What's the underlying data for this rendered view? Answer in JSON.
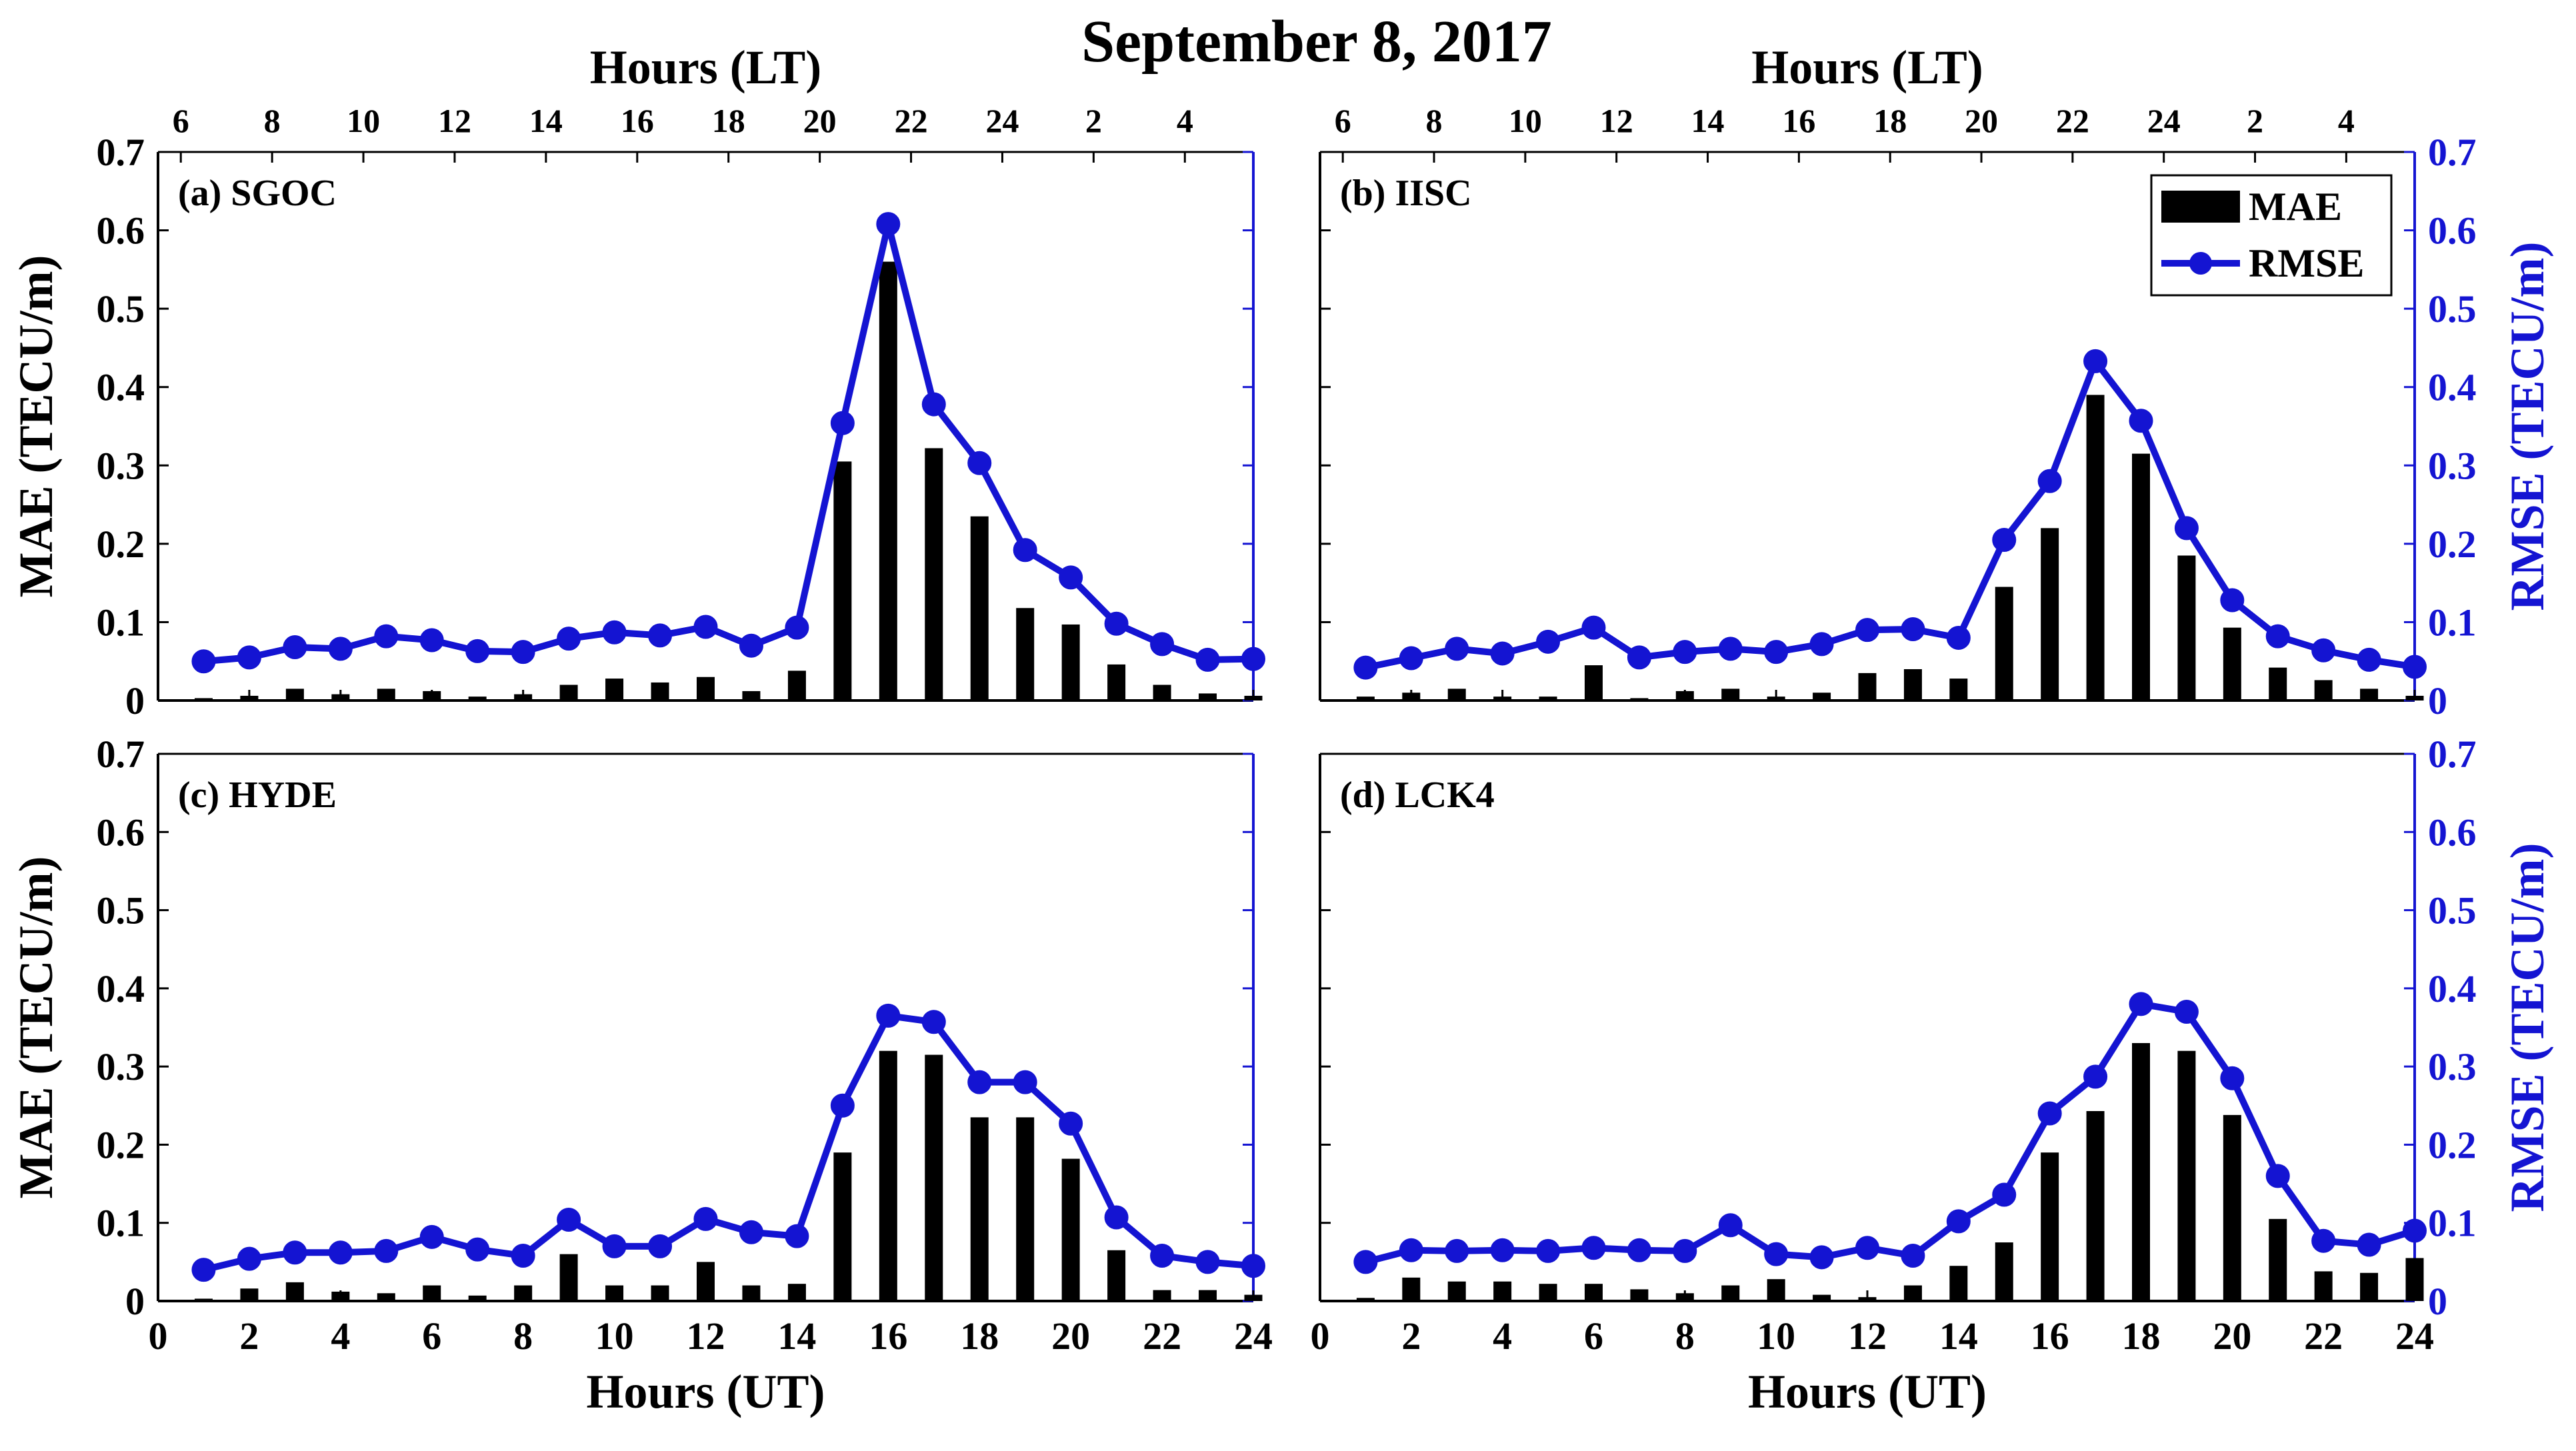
{
  "figure_title": "September 8, 2017",
  "colors": {
    "bar": "#000000",
    "line": "#1414d2",
    "axis": "#000000"
  },
  "legend": {
    "bar_label": "MAE",
    "line_label": "RMSE"
  },
  "chart_data": [
    {
      "type": "bar+line",
      "panel_label": "(a) SGOC",
      "title": "",
      "xlabel": "",
      "ylabel": "MAE (TECU/m)",
      "y2label": "",
      "top_xlabel": "Hours (LT)",
      "top_ticks": [
        "6",
        "8",
        "10",
        "12",
        "14",
        "16",
        "18",
        "20",
        "22",
        "24",
        "2",
        "4"
      ],
      "left_ticks": [
        "0",
        "0.1",
        "0.2",
        "0.3",
        "0.4",
        "0.5",
        "0.6",
        "0.7"
      ],
      "right_ticks": [],
      "bottom_ticks": [],
      "xlim": [
        0,
        24
      ],
      "ylim": [
        0,
        0.7
      ],
      "x": [
        1,
        2,
        3,
        4,
        5,
        6,
        7,
        8,
        9,
        10,
        11,
        12,
        13,
        14,
        15,
        16,
        17,
        18,
        19,
        20,
        21,
        22,
        23,
        24
      ],
      "series": [
        {
          "name": "MAE",
          "kind": "bar",
          "values": [
            0.003,
            0.006,
            0.015,
            0.008,
            0.015,
            0.012,
            0.005,
            0.008,
            0.02,
            0.028,
            0.023,
            0.03,
            0.012,
            0.038,
            0.305,
            0.56,
            0.322,
            0.235,
            0.118,
            0.097,
            0.046,
            0.02,
            0.009,
            0.006
          ]
        },
        {
          "name": "RMSE",
          "kind": "line",
          "values": [
            0.05,
            0.055,
            0.068,
            0.066,
            0.082,
            0.077,
            0.063,
            0.062,
            0.079,
            0.087,
            0.083,
            0.094,
            0.07,
            0.093,
            0.354,
            0.608,
            0.378,
            0.303,
            0.192,
            0.157,
            0.098,
            0.072,
            0.052,
            0.053
          ]
        }
      ]
    },
    {
      "type": "bar+line",
      "panel_label": "(b) IISC",
      "title": "",
      "xlabel": "",
      "ylabel": "",
      "y2label": "RMSE (TECU/m)",
      "top_xlabel": "Hours (LT)",
      "top_ticks": [
        "6",
        "8",
        "10",
        "12",
        "14",
        "16",
        "18",
        "20",
        "22",
        "24",
        "2",
        "4"
      ],
      "left_ticks": [],
      "right_ticks": [
        "0",
        "0.1",
        "0.2",
        "0.3",
        "0.4",
        "0.5",
        "0.6",
        "0.7"
      ],
      "bottom_ticks": [],
      "xlim": [
        0,
        24
      ],
      "ylim": [
        0,
        0.7
      ],
      "x": [
        1,
        2,
        3,
        4,
        5,
        6,
        7,
        8,
        9,
        10,
        11,
        12,
        13,
        14,
        15,
        16,
        17,
        18,
        19,
        20,
        21,
        22,
        23,
        24
      ],
      "series": [
        {
          "name": "MAE",
          "kind": "bar",
          "values": [
            0.005,
            0.01,
            0.015,
            0.005,
            0.005,
            0.045,
            0.003,
            0.012,
            0.015,
            0.005,
            0.01,
            0.035,
            0.04,
            0.028,
            0.145,
            0.22,
            0.39,
            0.315,
            0.185,
            0.093,
            0.042,
            0.026,
            0.015,
            0.006
          ]
        },
        {
          "name": "RMSE",
          "kind": "line",
          "values": [
            0.042,
            0.054,
            0.066,
            0.06,
            0.075,
            0.093,
            0.055,
            0.062,
            0.066,
            0.062,
            0.072,
            0.09,
            0.091,
            0.08,
            0.205,
            0.28,
            0.433,
            0.357,
            0.22,
            0.128,
            0.082,
            0.064,
            0.052,
            0.043
          ]
        }
      ]
    },
    {
      "type": "bar+line",
      "panel_label": "(c) HYDE",
      "title": "",
      "xlabel": "Hours (UT)",
      "ylabel": "MAE (TECU/m)",
      "y2label": "",
      "top_xlabel": "",
      "top_ticks": [],
      "left_ticks": [
        "0",
        "0.1",
        "0.2",
        "0.3",
        "0.4",
        "0.5",
        "0.6",
        "0.7"
      ],
      "right_ticks": [],
      "bottom_ticks": [
        "0",
        "2",
        "4",
        "6",
        "8",
        "10",
        "12",
        "14",
        "16",
        "18",
        "20",
        "22",
        "24"
      ],
      "xlim": [
        0,
        24
      ],
      "ylim": [
        0,
        0.7
      ],
      "x": [
        1,
        2,
        3,
        4,
        5,
        6,
        7,
        8,
        9,
        10,
        11,
        12,
        13,
        14,
        15,
        16,
        17,
        18,
        19,
        20,
        21,
        22,
        23,
        24
      ],
      "series": [
        {
          "name": "MAE",
          "kind": "bar",
          "values": [
            0.003,
            0.016,
            0.024,
            0.012,
            0.01,
            0.02,
            0.007,
            0.02,
            0.06,
            0.02,
            0.02,
            0.05,
            0.02,
            0.022,
            0.19,
            0.32,
            0.315,
            0.235,
            0.235,
            0.182,
            0.065,
            0.014,
            0.014,
            0.008
          ]
        },
        {
          "name": "RMSE",
          "kind": "line",
          "values": [
            0.04,
            0.054,
            0.062,
            0.062,
            0.064,
            0.082,
            0.066,
            0.058,
            0.104,
            0.07,
            0.07,
            0.105,
            0.088,
            0.083,
            0.25,
            0.365,
            0.357,
            0.28,
            0.28,
            0.227,
            0.107,
            0.058,
            0.05,
            0.045
          ]
        }
      ]
    },
    {
      "type": "bar+line",
      "panel_label": "(d) LCK4",
      "title": "",
      "xlabel": "Hours (UT)",
      "ylabel": "",
      "y2label": "RMSE (TECU/m)",
      "top_xlabel": "",
      "top_ticks": [],
      "left_ticks": [],
      "right_ticks": [
        "0",
        "0.1",
        "0.2",
        "0.3",
        "0.4",
        "0.5",
        "0.6",
        "0.7"
      ],
      "bottom_ticks": [
        "0",
        "2",
        "4",
        "6",
        "8",
        "10",
        "12",
        "14",
        "16",
        "18",
        "20",
        "22",
        "24"
      ],
      "xlim": [
        0,
        24
      ],
      "ylim": [
        0,
        0.7
      ],
      "x": [
        1,
        2,
        3,
        4,
        5,
        6,
        7,
        8,
        9,
        10,
        11,
        12,
        13,
        14,
        15,
        16,
        17,
        18,
        19,
        20,
        21,
        22,
        23,
        24
      ],
      "series": [
        {
          "name": "MAE",
          "kind": "bar",
          "values": [
            0.004,
            0.03,
            0.025,
            0.025,
            0.022,
            0.022,
            0.015,
            0.01,
            0.02,
            0.028,
            0.008,
            0.005,
            0.02,
            0.045,
            0.075,
            0.19,
            0.243,
            0.33,
            0.32,
            0.238,
            0.105,
            0.038,
            0.036,
            0.055
          ]
        },
        {
          "name": "RMSE",
          "kind": "line",
          "values": [
            0.05,
            0.065,
            0.064,
            0.065,
            0.064,
            0.068,
            0.065,
            0.064,
            0.097,
            0.06,
            0.056,
            0.068,
            0.058,
            0.102,
            0.136,
            0.24,
            0.287,
            0.38,
            0.37,
            0.285,
            0.16,
            0.077,
            0.072,
            0.09
          ]
        }
      ]
    }
  ]
}
